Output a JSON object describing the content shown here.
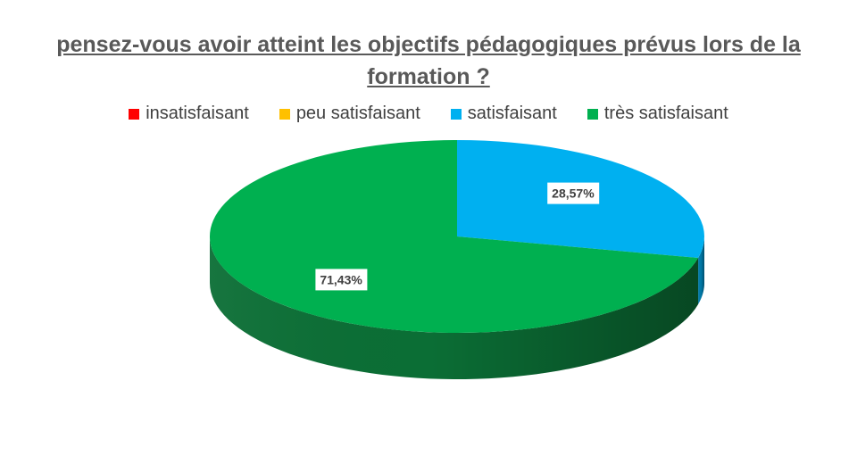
{
  "chart_data": {
    "type": "pie",
    "title_line1": "pensez-vous avoir atteint les objectifs pédagogiques prévus lors de la",
    "title_line2": "formation ?",
    "legend_position": "top",
    "categories": [
      "insatisfaisant",
      "peu satisfaisant",
      "satisfaisant",
      "très satisfaisant"
    ],
    "values": [
      0,
      0,
      28.57,
      71.43
    ],
    "labels": [
      "",
      "",
      "28,57%",
      "71,43%"
    ],
    "colors": [
      "#ff0000",
      "#ffc000",
      "#00b0f0",
      "#00b050"
    ],
    "side_colors": [
      "#aa0000",
      "#a07a00",
      "#0079a8",
      "#0b6e35"
    ]
  }
}
